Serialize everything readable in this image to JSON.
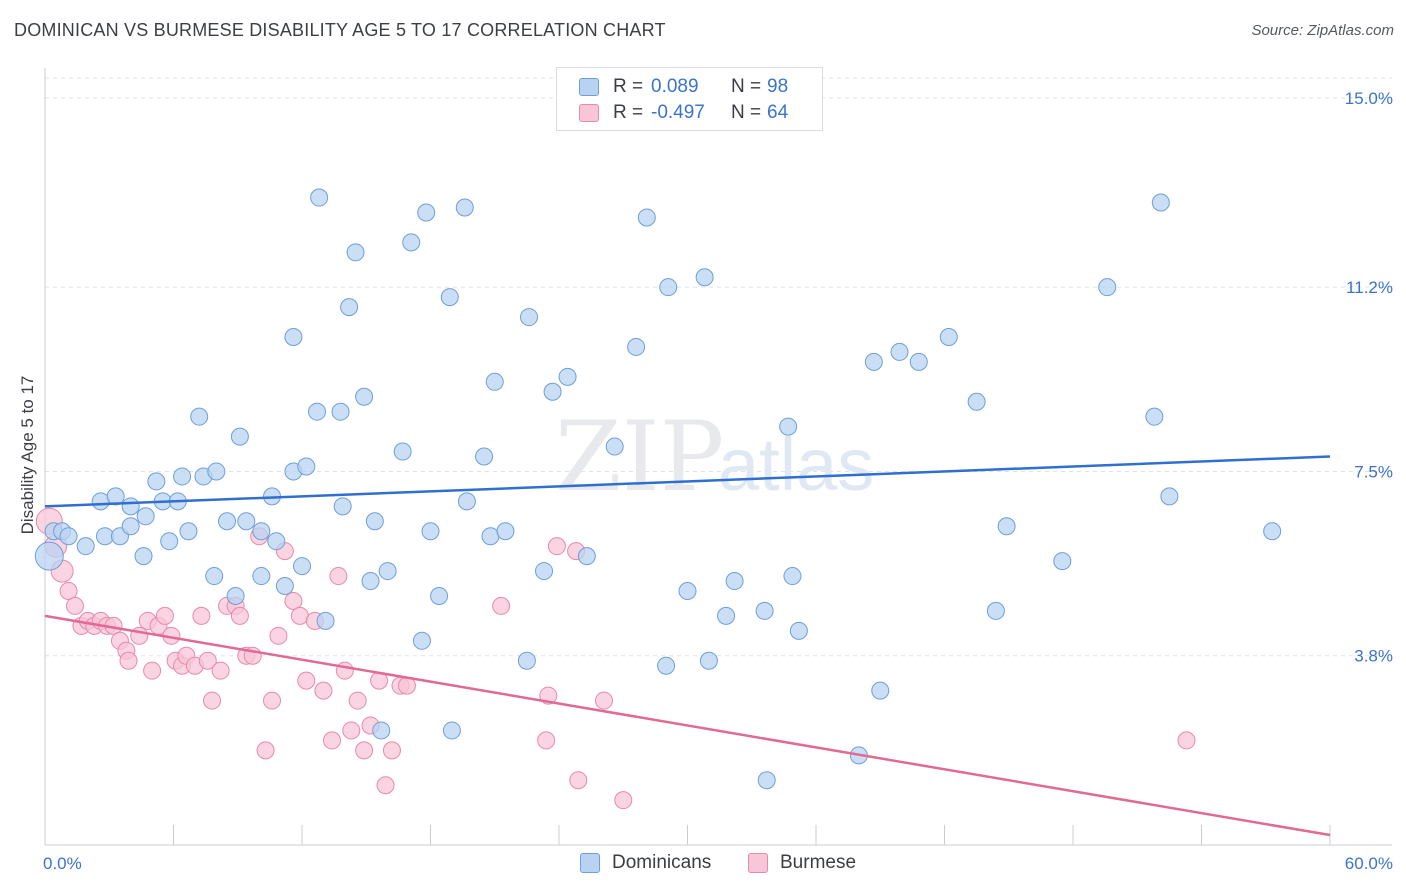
{
  "title": "DOMINICAN VS BURMESE DISABILITY AGE 5 TO 17 CORRELATION CHART",
  "source": "Source: ZipAtlas.com",
  "watermark": {
    "zip": "ZIP",
    "atlas": "atlas"
  },
  "legend": {
    "series": [
      {
        "r_label": "R =",
        "r_value": "0.089",
        "n_label": "N =",
        "n_value": "98"
      },
      {
        "r_label": "R =",
        "r_value": "-0.497",
        "n_label": "N =",
        "n_value": "64"
      }
    ]
  },
  "bottom_legend": [
    "Dominicans",
    "Burmese"
  ],
  "colors": {
    "dominicans_fill": "#b8d3f2",
    "dominicans_stroke": "#6f9fd8",
    "dominicans_line": "#2f6fd0",
    "burmese_fill": "#f8c6d6",
    "burmese_stroke": "#e88aa9",
    "burmese_line": "#e06a94",
    "value_text": "#3b74c9",
    "grid": "#dfe2e6"
  },
  "chart_data": {
    "type": "scatter",
    "title": "DOMINICAN VS BURMESE DISABILITY AGE 5 TO 17 CORRELATION CHART",
    "xlabel": "",
    "ylabel": "Disability Age 5 to 17",
    "xlim": [
      0,
      60
    ],
    "ylim": [
      0,
      15.4
    ],
    "x_tick_labels": [
      "0.0%",
      "60.0%"
    ],
    "y_ticks": [
      3.8,
      7.5,
      11.2,
      15.0
    ],
    "y_tick_labels": [
      "3.8%",
      "7.5%",
      "11.2%",
      "15.0%"
    ],
    "grid": "horizontal dashed",
    "legend_position": "top-center",
    "series": [
      {
        "name": "Dominicans",
        "trend": {
          "x": [
            0,
            60
          ],
          "y": [
            6.8,
            7.8
          ]
        },
        "points": [
          [
            0.2,
            5.8
          ],
          [
            0.4,
            6.3
          ],
          [
            0.8,
            6.3
          ],
          [
            1.1,
            6.2
          ],
          [
            1.9,
            6.0
          ],
          [
            2.8,
            6.2
          ],
          [
            3.5,
            6.2
          ],
          [
            2.6,
            6.9
          ],
          [
            3.3,
            7.0
          ],
          [
            4.0,
            6.4
          ],
          [
            4.6,
            5.8
          ],
          [
            4.0,
            6.8
          ],
          [
            4.7,
            6.6
          ],
          [
            5.5,
            6.9
          ],
          [
            5.2,
            7.3
          ],
          [
            6.2,
            6.9
          ],
          [
            5.8,
            6.1
          ],
          [
            6.7,
            6.3
          ],
          [
            6.4,
            7.4
          ],
          [
            7.2,
            8.6
          ],
          [
            7.4,
            7.4
          ],
          [
            7.9,
            5.4
          ],
          [
            8.0,
            7.5
          ],
          [
            8.5,
            6.5
          ],
          [
            8.9,
            5.0
          ],
          [
            9.1,
            8.2
          ],
          [
            9.4,
            6.5
          ],
          [
            10.1,
            5.4
          ],
          [
            10.6,
            7.0
          ],
          [
            10.1,
            6.3
          ],
          [
            10.8,
            6.1
          ],
          [
            11.2,
            5.2
          ],
          [
            11.6,
            7.5
          ],
          [
            12.2,
            7.6
          ],
          [
            11.6,
            10.2
          ],
          [
            12.7,
            8.7
          ],
          [
            13.1,
            4.5
          ],
          [
            12.8,
            13.0
          ],
          [
            13.8,
            8.7
          ],
          [
            13.9,
            6.8
          ],
          [
            14.2,
            10.8
          ],
          [
            14.5,
            11.9
          ],
          [
            14.9,
            9.0
          ],
          [
            15.2,
            5.3
          ],
          [
            15.4,
            6.5
          ],
          [
            15.7,
            2.3
          ],
          [
            16.0,
            5.5
          ],
          [
            16.7,
            7.9
          ],
          [
            17.1,
            12.1
          ],
          [
            17.6,
            4.1
          ],
          [
            17.8,
            12.7
          ],
          [
            18.0,
            6.3
          ],
          [
            18.4,
            5.0
          ],
          [
            18.9,
            11.0
          ],
          [
            19.0,
            2.3
          ],
          [
            19.6,
            12.8
          ],
          [
            19.7,
            6.9
          ],
          [
            20.5,
            7.8
          ],
          [
            20.8,
            6.2
          ],
          [
            21.0,
            9.3
          ],
          [
            21.5,
            6.3
          ],
          [
            22.5,
            3.7
          ],
          [
            22.6,
            10.6
          ],
          [
            23.3,
            5.5
          ],
          [
            23.7,
            9.1
          ],
          [
            24.4,
            9.4
          ],
          [
            25.3,
            5.8
          ],
          [
            26.6,
            8.0
          ],
          [
            27.6,
            10.0
          ],
          [
            28.1,
            12.6
          ],
          [
            29.0,
            3.6
          ],
          [
            29.1,
            11.2
          ],
          [
            30.0,
            5.1
          ],
          [
            30.8,
            11.4
          ],
          [
            31.0,
            3.7
          ],
          [
            31.8,
            4.6
          ],
          [
            32.2,
            5.3
          ],
          [
            33.6,
            4.7
          ],
          [
            34.7,
            8.4
          ],
          [
            34.9,
            5.4
          ],
          [
            35.2,
            4.3
          ],
          [
            38.0,
            1.8
          ],
          [
            38.7,
            9.7
          ],
          [
            39.0,
            3.1
          ],
          [
            39.9,
            9.9
          ],
          [
            40.8,
            9.7
          ],
          [
            42.2,
            10.2
          ],
          [
            43.5,
            8.9
          ],
          [
            44.4,
            4.7
          ],
          [
            44.9,
            6.4
          ],
          [
            47.5,
            5.7
          ],
          [
            49.6,
            11.2
          ],
          [
            51.8,
            8.6
          ],
          [
            52.1,
            12.9
          ],
          [
            52.5,
            7.0
          ],
          [
            57.3,
            6.3
          ],
          [
            33.7,
            1.3
          ],
          [
            12.0,
            5.6
          ]
        ]
      },
      {
        "name": "Burmese",
        "trend": {
          "x": [
            0,
            60
          ],
          "y": [
            4.6,
            0.2
          ]
        },
        "points": [
          [
            0.2,
            6.5
          ],
          [
            0.5,
            6.0
          ],
          [
            0.8,
            5.5
          ],
          [
            1.1,
            5.1
          ],
          [
            1.4,
            4.8
          ],
          [
            1.7,
            4.4
          ],
          [
            2.0,
            4.5
          ],
          [
            2.3,
            4.4
          ],
          [
            2.6,
            4.5
          ],
          [
            2.9,
            4.4
          ],
          [
            3.2,
            4.4
          ],
          [
            3.5,
            4.1
          ],
          [
            3.8,
            3.9
          ],
          [
            3.9,
            3.7
          ],
          [
            4.4,
            4.2
          ],
          [
            4.8,
            4.5
          ],
          [
            5.0,
            3.5
          ],
          [
            5.3,
            4.4
          ],
          [
            5.6,
            4.6
          ],
          [
            5.9,
            4.2
          ],
          [
            6.1,
            3.7
          ],
          [
            6.4,
            3.6
          ],
          [
            6.6,
            3.8
          ],
          [
            7.0,
            3.6
          ],
          [
            7.3,
            4.6
          ],
          [
            7.6,
            3.7
          ],
          [
            7.8,
            2.9
          ],
          [
            8.2,
            3.5
          ],
          [
            8.5,
            4.8
          ],
          [
            8.9,
            4.8
          ],
          [
            9.1,
            4.6
          ],
          [
            9.4,
            3.8
          ],
          [
            9.7,
            3.8
          ],
          [
            10.0,
            6.2
          ],
          [
            10.3,
            1.9
          ],
          [
            10.6,
            2.9
          ],
          [
            10.9,
            4.2
          ],
          [
            11.2,
            5.9
          ],
          [
            11.6,
            4.9
          ],
          [
            11.9,
            4.6
          ],
          [
            12.2,
            3.3
          ],
          [
            12.6,
            4.5
          ],
          [
            13.0,
            3.1
          ],
          [
            13.4,
            2.1
          ],
          [
            13.7,
            5.4
          ],
          [
            14.0,
            3.5
          ],
          [
            14.3,
            2.3
          ],
          [
            14.6,
            2.9
          ],
          [
            14.9,
            1.9
          ],
          [
            15.2,
            2.4
          ],
          [
            15.6,
            3.3
          ],
          [
            15.9,
            1.2
          ],
          [
            16.2,
            1.9
          ],
          [
            16.6,
            3.2
          ],
          [
            16.9,
            3.2
          ],
          [
            21.3,
            4.8
          ],
          [
            23.4,
            2.1
          ],
          [
            23.5,
            3.0
          ],
          [
            23.9,
            6.0
          ],
          [
            24.8,
            5.9
          ],
          [
            24.9,
            1.3
          ],
          [
            26.1,
            2.9
          ],
          [
            27.0,
            0.9
          ],
          [
            53.3,
            2.1
          ]
        ]
      }
    ]
  }
}
